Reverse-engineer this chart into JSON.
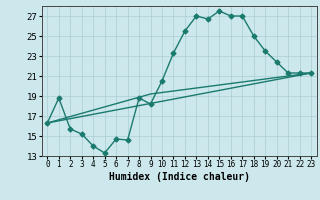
{
  "xlabel": "Humidex (Indice chaleur)",
  "bg_color": "#cce8ec",
  "line_color": "#1a7a6e",
  "xlim": [
    -0.5,
    23.5
  ],
  "ylim": [
    13,
    28
  ],
  "yticks": [
    13,
    15,
    17,
    19,
    21,
    23,
    25,
    27
  ],
  "xticks": [
    0,
    1,
    2,
    3,
    4,
    5,
    6,
    7,
    8,
    9,
    10,
    11,
    12,
    13,
    14,
    15,
    16,
    17,
    18,
    19,
    20,
    21,
    22,
    23
  ],
  "curve_x": [
    0,
    1,
    2,
    3,
    4,
    5,
    6,
    7,
    8,
    9,
    10,
    11,
    12,
    13,
    14,
    15,
    16,
    17,
    18,
    19,
    20,
    21,
    22,
    23
  ],
  "curve_y": [
    16.3,
    18.8,
    15.7,
    15.2,
    14.0,
    13.3,
    14.7,
    14.6,
    18.8,
    18.2,
    20.5,
    23.3,
    25.5,
    27.0,
    26.7,
    27.5,
    27.0,
    27.0,
    25.0,
    23.5,
    22.4,
    21.3,
    21.3,
    21.3
  ],
  "line1_x": [
    0,
    9,
    23
  ],
  "line1_y": [
    16.3,
    19.2,
    21.3
  ],
  "line2_x": [
    0,
    23
  ],
  "line2_y": [
    16.3,
    21.3
  ],
  "grid_color": "#aacfd4",
  "marker": "D",
  "marker_size": 2.5,
  "linewidth": 1.0,
  "font_family": "monospace"
}
